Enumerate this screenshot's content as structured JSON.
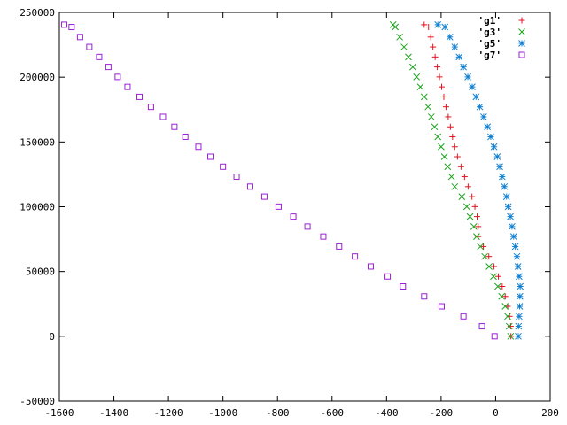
{
  "chart_data": {
    "type": "scatter",
    "title": "",
    "xlabel": "",
    "ylabel": "",
    "xlim": [
      -1600,
      200
    ],
    "ylim": [
      -50000,
      250000
    ],
    "x_ticks": [
      -1600,
      -1400,
      -1200,
      -1000,
      -800,
      -600,
      -400,
      -200,
      0,
      200
    ],
    "y_ticks": [
      -50000,
      0,
      50000,
      100000,
      150000,
      200000,
      250000
    ],
    "grid": false,
    "legend_position": "top-right",
    "series": [
      {
        "name": "'g1'",
        "marker": "plus",
        "color": "#e0141e",
        "points": [
          [
            56,
            0
          ],
          [
            55,
            7700
          ],
          [
            51,
            15400
          ],
          [
            44,
            23100
          ],
          [
            35,
            30800
          ],
          [
            24,
            38500
          ],
          [
            10,
            46200
          ],
          [
            -6,
            53900
          ],
          [
            -25,
            61600
          ],
          [
            -45,
            69300
          ],
          [
            -64,
            77000
          ],
          [
            -64,
            84700
          ],
          [
            -68,
            92400
          ],
          [
            -76,
            100100
          ],
          [
            -87,
            107800
          ],
          [
            -101,
            115500
          ],
          [
            -114,
            123200
          ],
          [
            -127,
            130900
          ],
          [
            -140,
            138600
          ],
          [
            -150,
            146300
          ],
          [
            -158,
            154000
          ],
          [
            -166,
            161700
          ],
          [
            -174,
            169400
          ],
          [
            -182,
            177100
          ],
          [
            -190,
            184800
          ],
          [
            -198,
            192500
          ],
          [
            -206,
            200200
          ],
          [
            -214,
            207900
          ],
          [
            -222,
            215600
          ],
          [
            -230,
            223300
          ],
          [
            -238,
            231000
          ],
          [
            -246,
            238700
          ],
          [
            -262,
            240500
          ]
        ]
      },
      {
        "name": "'g3'",
        "marker": "cross",
        "color": "#1aa31a",
        "points": [
          [
            55,
            0
          ],
          [
            50,
            7700
          ],
          [
            44,
            15400
          ],
          [
            35,
            23100
          ],
          [
            22,
            30800
          ],
          [
            8,
            38500
          ],
          [
            -8,
            46200
          ],
          [
            -24,
            53900
          ],
          [
            -40,
            61600
          ],
          [
            -56,
            69300
          ],
          [
            -70,
            77000
          ],
          [
            -80,
            84700
          ],
          [
            -94,
            92400
          ],
          [
            -106,
            100100
          ],
          [
            -124,
            107800
          ],
          [
            -150,
            115500
          ],
          [
            -162,
            123200
          ],
          [
            -176,
            130900
          ],
          [
            -188,
            138600
          ],
          [
            -200,
            146300
          ],
          [
            -212,
            154000
          ],
          [
            -224,
            161700
          ],
          [
            -236,
            169400
          ],
          [
            -248,
            177100
          ],
          [
            -262,
            184800
          ],
          [
            -276,
            192500
          ],
          [
            -290,
            200200
          ],
          [
            -304,
            207900
          ],
          [
            -320,
            215600
          ],
          [
            -336,
            223300
          ],
          [
            -352,
            231000
          ],
          [
            -368,
            238700
          ],
          [
            -376,
            240500
          ]
        ]
      },
      {
        "name": "'g5'",
        "marker": "star",
        "color": "#0f7fd1",
        "points": [
          [
            83,
            0
          ],
          [
            84,
            7700
          ],
          [
            86,
            15400
          ],
          [
            88,
            23100
          ],
          [
            89,
            30800
          ],
          [
            90,
            38500
          ],
          [
            86,
            46200
          ],
          [
            82,
            53900
          ],
          [
            78,
            61600
          ],
          [
            72,
            69300
          ],
          [
            66,
            77000
          ],
          [
            60,
            84700
          ],
          [
            54,
            92400
          ],
          [
            46,
            100100
          ],
          [
            40,
            107800
          ],
          [
            32,
            115500
          ],
          [
            24,
            123200
          ],
          [
            15,
            130900
          ],
          [
            6,
            138600
          ],
          [
            -6,
            146300
          ],
          [
            -18,
            154000
          ],
          [
            -30,
            161700
          ],
          [
            -44,
            169400
          ],
          [
            -58,
            177100
          ],
          [
            -72,
            184800
          ],
          [
            -86,
            192500
          ],
          [
            -102,
            200200
          ],
          [
            -118,
            207900
          ],
          [
            -134,
            215600
          ],
          [
            -150,
            223300
          ],
          [
            -168,
            231000
          ],
          [
            -186,
            238700
          ],
          [
            -212,
            240500
          ]
        ]
      },
      {
        "name": "'g7'",
        "marker": "square",
        "color": "#9b20d4",
        "points": [
          [
            -4,
            0
          ],
          [
            -50,
            7700
          ],
          [
            -118,
            15400
          ],
          [
            -198,
            23100
          ],
          [
            -262,
            30800
          ],
          [
            -340,
            38500
          ],
          [
            -396,
            46200
          ],
          [
            -458,
            53900
          ],
          [
            -516,
            61600
          ],
          [
            -574,
            69300
          ],
          [
            -632,
            77000
          ],
          [
            -690,
            84700
          ],
          [
            -742,
            92400
          ],
          [
            -796,
            100100
          ],
          [
            -848,
            107800
          ],
          [
            -900,
            115500
          ],
          [
            -950,
            123200
          ],
          [
            -1000,
            130900
          ],
          [
            -1046,
            138600
          ],
          [
            -1090,
            146300
          ],
          [
            -1138,
            154000
          ],
          [
            -1178,
            161700
          ],
          [
            -1220,
            169400
          ],
          [
            -1264,
            177100
          ],
          [
            -1306,
            184800
          ],
          [
            -1350,
            192500
          ],
          [
            -1386,
            200200
          ],
          [
            -1420,
            207900
          ],
          [
            -1454,
            215600
          ],
          [
            -1490,
            223300
          ],
          [
            -1524,
            231000
          ],
          [
            -1555,
            238700
          ],
          [
            -1582,
            240500
          ]
        ]
      }
    ]
  }
}
